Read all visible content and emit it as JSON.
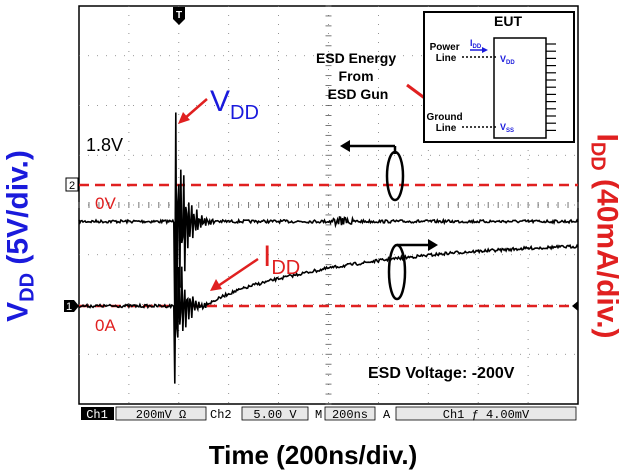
{
  "chart_data": {
    "type": "line",
    "title": "",
    "xlabel": "Time (200ns/div.)",
    "ylabel_left": {
      "main": "V",
      "sub": "DD",
      "rest": " (5V/div.)",
      "color": "#1a1adc"
    },
    "ylabel_right": {
      "main": "I",
      "sub": "DD",
      "rest": " (40mA/div.)",
      "color": "#e02020"
    },
    "grid": {
      "x_divisions": 10,
      "y_divisions": 8,
      "style": "dotted"
    },
    "x_range_div": [
      0,
      10
    ],
    "y_range_div": [
      -4,
      4
    ],
    "series": [
      {
        "name": "VDD",
        "color": "#000000",
        "x_div": [
          0,
          0.5,
          1.0,
          1.5,
          2.0,
          2.5,
          3.0,
          3.5,
          4.0,
          4.5,
          5.0,
          5.5,
          6.0,
          6.5,
          7.0,
          7.5,
          8.0,
          8.5,
          9.0,
          9.5,
          10
        ],
        "y_div": [
          1.7,
          1.7,
          1.7,
          1.7,
          1.7,
          1.7,
          1.7,
          1.7,
          1.7,
          1.7,
          1.7,
          1.7,
          1.7,
          1.7,
          1.7,
          1.7,
          1.7,
          1.7,
          1.7,
          1.7,
          1.7
        ]
      },
      {
        "name": "IDD",
        "color": "#000000",
        "x_div": [
          0,
          1.0,
          2.0,
          2.5,
          3.0,
          3.5,
          4.0,
          4.5,
          5.0,
          5.5,
          6.0,
          6.5,
          7.0,
          7.5,
          8.0,
          8.5,
          9.0,
          9.5,
          10
        ],
        "y_div": [
          0,
          0,
          0,
          0,
          0.25,
          0.42,
          0.55,
          0.66,
          0.76,
          0.84,
          0.91,
          0.97,
          1.02,
          1.07,
          1.1,
          1.13,
          1.16,
          1.18,
          1.2
        ]
      }
    ],
    "reference_lines": [
      {
        "label": "0V",
        "y_div": 1.15,
        "color": "#e02020"
      },
      {
        "label": "0A",
        "y_div": 0,
        "color": "#e02020"
      }
    ],
    "annotations": {
      "level_1_8v": "1.8V",
      "label_vdd": {
        "main": "V",
        "sub": "DD"
      },
      "label_idd": {
        "main": "I",
        "sub": "DD"
      },
      "esd_voltage": "ESD Voltage: -200V",
      "esd_energy": [
        "ESD Energy",
        "From",
        "ESD Gun"
      ]
    },
    "channel_markers": {
      "ch2": "2",
      "ch1": "1",
      "trigger": "T"
    },
    "inset": {
      "title": "EUT",
      "power_line": [
        "Power",
        "Line"
      ],
      "ground_line": [
        "Ground",
        "Line"
      ],
      "idd": {
        "main": "I",
        "sub": "DD"
      },
      "vdd": {
        "main": "V",
        "sub": "DD"
      },
      "vss": {
        "main": "V",
        "sub": "SS"
      }
    },
    "status_bar": {
      "ch1_label": "Ch1",
      "ch1_scale": "200mV Ω",
      "ch2_label": "Ch2",
      "ch2_scale": "5.00 V",
      "m_label": "M",
      "timebase": "200ns",
      "a_label": "A",
      "trigger_src": "Ch1 ƒ 4.00mV"
    }
  }
}
